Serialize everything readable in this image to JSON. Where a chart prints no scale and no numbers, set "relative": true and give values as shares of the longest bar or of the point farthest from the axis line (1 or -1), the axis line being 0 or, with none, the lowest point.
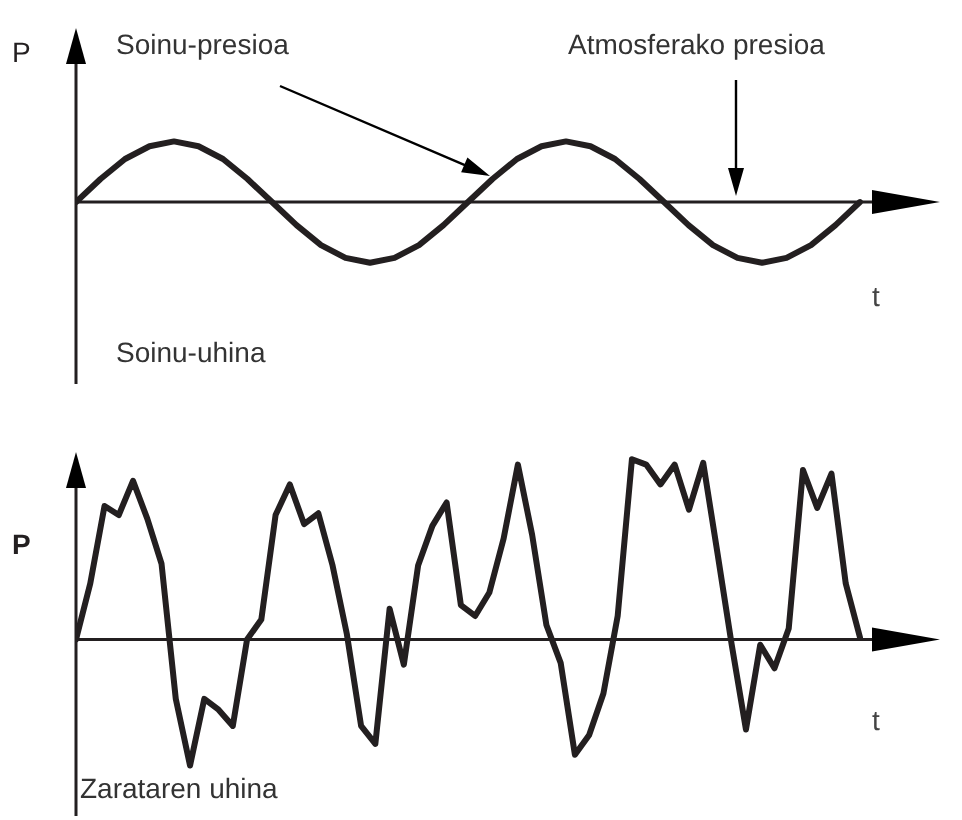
{
  "chart_data": [
    {
      "type": "line",
      "relative": true,
      "xlabel": "t",
      "ylabel": "P",
      "categories": [
        null,
        null,
        null,
        null,
        null,
        null,
        null,
        null,
        null,
        null,
        null,
        null,
        null,
        null,
        null,
        null,
        null,
        null,
        null,
        null,
        null,
        null,
        null,
        null,
        null,
        null,
        null,
        null,
        null,
        null,
        null,
        null,
        null
      ],
      "series": [
        {
          "color": "#231f20",
          "values": [
            0,
            0.38,
            0.71,
            0.92,
            1,
            0.92,
            0.71,
            0.38,
            0,
            -0.38,
            -0.71,
            -0.92,
            -1,
            -0.92,
            -0.71,
            -0.38,
            0,
            0.38,
            0.71,
            0.92,
            1,
            0.92,
            0.71,
            0.38,
            0,
            -0.38,
            -0.71,
            -0.92,
            -1,
            -0.92,
            -0.71,
            -0.38,
            0
          ]
        }
      ],
      "annotations": [
        "Soinu-presioa",
        "Atmosferako presioa",
        "Soinu-uhina"
      ]
    },
    {
      "type": "line",
      "relative": true,
      "xlabel": "t",
      "ylabel": "P",
      "categories": [
        null,
        null,
        null,
        null,
        null,
        null,
        null,
        null,
        null,
        null,
        null,
        null,
        null,
        null,
        null,
        null,
        null,
        null,
        null,
        null,
        null,
        null,
        null,
        null,
        null,
        null,
        null,
        null,
        null,
        null,
        null,
        null,
        null,
        null,
        null,
        null,
        null,
        null,
        null,
        null,
        null,
        null,
        null,
        null,
        null,
        null,
        null,
        null,
        null,
        null,
        null,
        null,
        null,
        null,
        null,
        null
      ],
      "series": [
        {
          "color": "#231f20",
          "values": [
            0,
            0.31,
            0.74,
            0.69,
            0.88,
            0.67,
            0.42,
            -0.33,
            -0.7,
            -0.33,
            -0.39,
            -0.48,
            0,
            0.11,
            0.69,
            0.86,
            0.64,
            0.7,
            0.41,
            0.03,
            -0.48,
            -0.58,
            0.17,
            -0.14,
            0.41,
            0.63,
            0.76,
            0.19,
            0.13,
            0.26,
            0.56,
            0.97,
            0.58,
            0.08,
            -0.13,
            -0.64,
            -0.53,
            -0.3,
            0.13,
            1,
            0.97,
            0.86,
            0.97,
            0.72,
            0.98,
            0.48,
            -0.03,
            -0.5,
            -0.03,
            -0.16,
            0.06,
            0.94,
            0.73,
            0.92,
            0.31,
            0.01
          ]
        }
      ],
      "annotations": [
        "Zarataren uhina"
      ]
    }
  ]
}
